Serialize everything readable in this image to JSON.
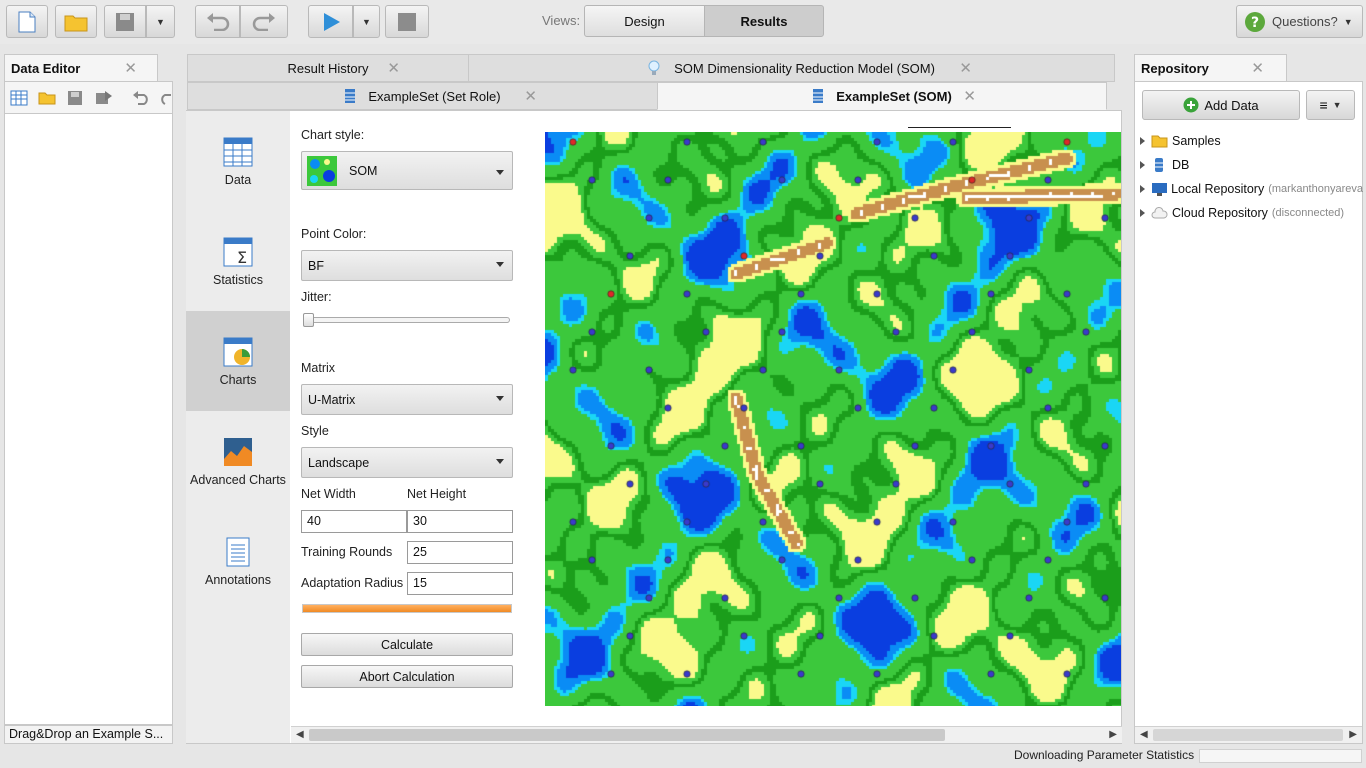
{
  "toolbar": {
    "views_label": "Views:",
    "views": [
      "Design",
      "Results"
    ],
    "active_view": "Results",
    "questions_label": "Questions?",
    "icons": [
      "new-process-icon",
      "open-folder-icon",
      "save-icon",
      "undo-icon",
      "redo-icon",
      "run-play-icon",
      "stop-icon",
      "help-question-icon"
    ]
  },
  "data_editor": {
    "title": "Data Editor",
    "status": "Drag&Drop an Example S..."
  },
  "center_tabs": {
    "row1": [
      {
        "label": "Result History"
      },
      {
        "label": "SOM Dimensionality Reduction Model (SOM)"
      }
    ],
    "row2": [
      {
        "label": "ExampleSet (Set Role)"
      },
      {
        "label": "ExampleSet (SOM)",
        "active": true
      }
    ]
  },
  "sidenav": [
    {
      "label": "Data"
    },
    {
      "label": "Statistics"
    },
    {
      "label": "Charts",
      "selected": true
    },
    {
      "label": "Advanced Charts"
    },
    {
      "label": "Annotations"
    }
  ],
  "chart_settings": {
    "chart_style_label": "Chart style:",
    "chart_style_value": "SOM",
    "point_color_label": "Point Color:",
    "point_color_value": "BF",
    "jitter_label": "Jitter:",
    "jitter_value": 0,
    "matrix_label": "Matrix",
    "matrix_value": "U-Matrix",
    "style_label": "Style",
    "style_value": "Landscape",
    "net_width_label": "Net Width",
    "net_width_value": "40",
    "net_height_label": "Net Height",
    "net_height_value": "30",
    "training_rounds_label": "Training Rounds",
    "training_rounds_value": "25",
    "adaptation_radius_label": "Adaptation Radius",
    "adaptation_radius_value": "15",
    "progress": 1.0,
    "calculate_label": "Calculate",
    "abort_label": "Abort Calculation"
  },
  "repository": {
    "title": "Repository",
    "add_data_label": "Add Data",
    "items": [
      {
        "label": "Samples",
        "note": "",
        "icon": "folder-icon"
      },
      {
        "label": "DB",
        "note": "",
        "icon": "database-icon"
      },
      {
        "label": "Local Repository",
        "note": "(markanthonyareva",
        "icon": "computer-icon"
      },
      {
        "label": "Cloud Repository",
        "note": "(disconnected)",
        "icon": "cloud-icon"
      }
    ]
  },
  "status_bar": {
    "text": "Downloading Parameter Statistics"
  },
  "colors": {
    "deep_water": "#0a3ee0",
    "water": "#0a8cf5",
    "shallow": "#1ad6f5",
    "grass": "#3cc83c",
    "dark_grass": "#1b9e1b",
    "sand": "#fafa8c",
    "mountain": "#c8904e",
    "snow": "#ffffff",
    "point_blue": "#3a3acc",
    "point_red": "#e02828",
    "progress_orange": "#f08a24"
  }
}
